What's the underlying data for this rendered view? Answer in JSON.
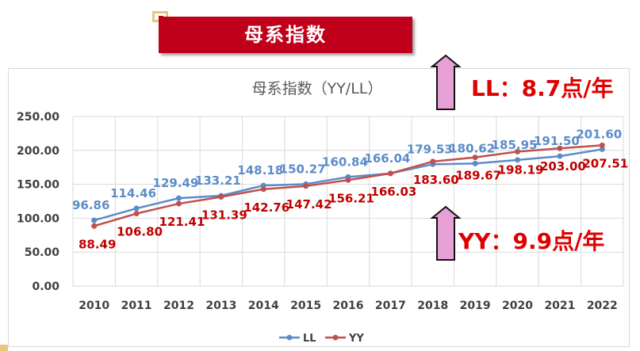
{
  "banner_title": "母系指数",
  "notes": {
    "ll_growth": "LL：8.7点/年",
    "yy_growth": "YY：9.9点/年"
  },
  "colors": {
    "ll": "#5b8cc8",
    "yy": "#c0504d",
    "ll_label": "#5b8cc8",
    "yy_label": "#c00000",
    "banner": "#c0001a",
    "arrow_fill": "#e6a0d6"
  },
  "chart_data": {
    "type": "line",
    "title": "母系指数（YY/LL）",
    "xlabel": "",
    "ylabel": "",
    "ylim": [
      0,
      250
    ],
    "yticks": [
      "0.00",
      "50.00",
      "100.00",
      "150.00",
      "200.00",
      "250.00"
    ],
    "grid": true,
    "legend": "bottom",
    "categories": [
      "2010",
      "2011",
      "2012",
      "2013",
      "2014",
      "2015",
      "2016",
      "2017",
      "2018",
      "2019",
      "2020",
      "2021",
      "2022"
    ],
    "series": [
      {
        "name": "LL",
        "values": [
          96.86,
          114.46,
          129.49,
          133.21,
          148.18,
          150.27,
          160.84,
          166.04,
          179.53,
          180.62,
          185.95,
          191.5,
          201.6
        ],
        "labels": [
          "96.86",
          "114.46",
          "129.49",
          "133.21",
          "148.18",
          "150.27",
          "160.84",
          "166.04",
          "179.53",
          "180.62",
          "185.95",
          "191.50",
          "201.60"
        ]
      },
      {
        "name": "YY",
        "values": [
          88.49,
          106.8,
          121.41,
          131.39,
          142.76,
          147.42,
          156.21,
          166.03,
          183.6,
          189.67,
          198.19,
          203.0,
          207.51
        ],
        "labels": [
          "88.49",
          "106.80",
          "121.41",
          "131.39",
          "142.76",
          "147.42",
          "156.21",
          "166.03",
          "183.60",
          "189.67",
          "198.19",
          "203.00",
          "207.51"
        ]
      }
    ]
  }
}
